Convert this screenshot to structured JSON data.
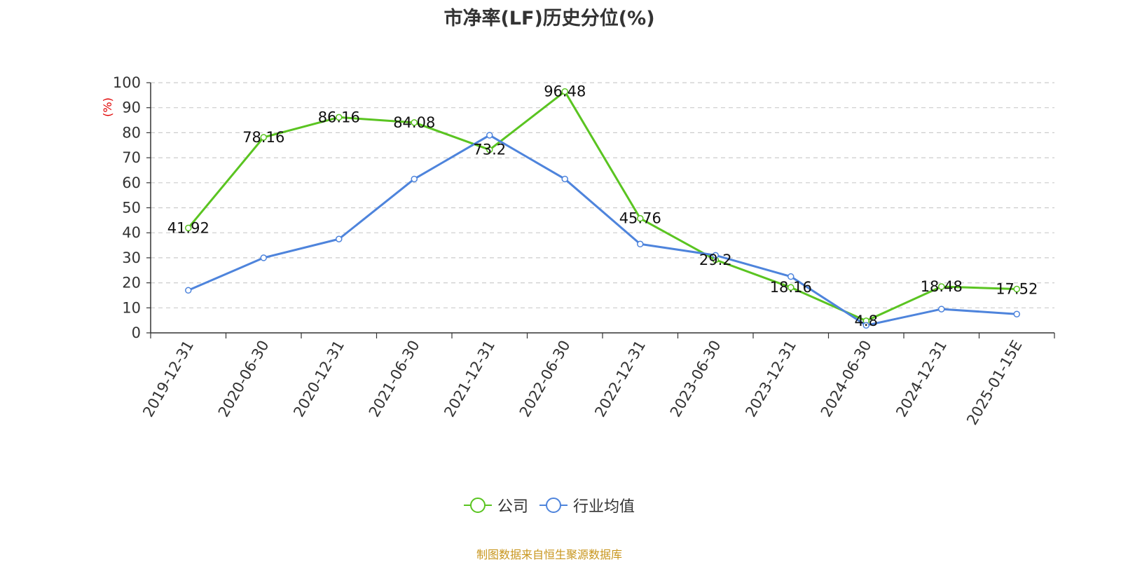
{
  "chart_data": {
    "type": "line",
    "title": "市净率(LF)历史分位(%)",
    "ylabel": "(%)",
    "xlabel": "",
    "ylim": [
      0,
      100
    ],
    "yticks": [
      0,
      10,
      20,
      30,
      40,
      50,
      60,
      70,
      80,
      90,
      100
    ],
    "grid": true,
    "legend_position": "bottom",
    "categories": [
      "2019-12-31",
      "2020-06-30",
      "2020-12-31",
      "2021-06-30",
      "2021-12-31",
      "2022-06-30",
      "2022-12-31",
      "2023-06-30",
      "2023-12-31",
      "2024-06-30",
      "2024-12-31",
      "2025-01-15E"
    ],
    "series": [
      {
        "name": "公司",
        "color": "#5ac421",
        "show_labels": true,
        "values": [
          41.92,
          78.16,
          86.16,
          84.08,
          73.2,
          96.48,
          45.76,
          29.2,
          18.16,
          4.8,
          18.48,
          17.52
        ]
      },
      {
        "name": "行业均值",
        "color": "#4e84dc",
        "show_labels": false,
        "values": [
          17,
          30,
          37.5,
          61.5,
          79,
          61.5,
          35.5,
          31,
          22.5,
          3,
          9.5,
          7.5
        ]
      }
    ]
  },
  "footer": {
    "source": "制图数据来自恒生聚源数据库"
  }
}
